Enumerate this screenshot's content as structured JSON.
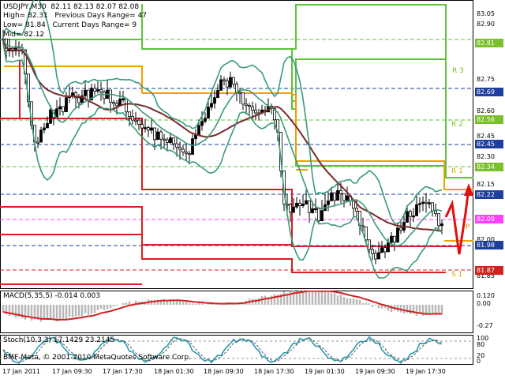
{
  "chart": {
    "symbol_line": "USDJPY,M30  82.11 82.13 82.07 82.08",
    "info_line1": "High= 82.31   Previous Days Range= 47",
    "info_line2": "Low= 81.84   Current Days Range= 9",
    "info_line3": "Mid= 82.12",
    "copyright": "BMF-Meta, © 2001-2010 MetaQuotes Software Corp."
  },
  "price_axis": [
    "83.05",
    "82.90",
    "82.75",
    "82.60",
    "82.45",
    "82.30",
    "82.15",
    "82.00",
    "81.85"
  ],
  "price_tags": [
    {
      "value": "82.81",
      "color": "#7ac02a"
    },
    {
      "value": "82.69",
      "color": "#1f3fa0"
    },
    {
      "value": "82.56",
      "color": "#7ac02a"
    },
    {
      "value": "82.45",
      "color": "#1f3fa0"
    },
    {
      "value": "82.34",
      "color": "#7ac02a"
    },
    {
      "value": "82.22",
      "color": "#1f3fa0"
    },
    {
      "value": "82.09",
      "color": "#ff40ff"
    },
    {
      "value": "81.98",
      "color": "#1f3fa0"
    },
    {
      "value": "81.87",
      "color": "#d42020"
    }
  ],
  "level_labels": [
    {
      "text": "R 3",
      "kind": "green"
    },
    {
      "text": "R 2",
      "kind": "green"
    },
    {
      "text": "R 1",
      "kind": "yellow"
    },
    {
      "text": "P",
      "kind": "yellow"
    },
    {
      "text": "S 1",
      "kind": "yellow"
    }
  ],
  "time_axis": [
    "17 Jan 2011",
    "17 Jan 09:30",
    "17 Jan 17:30",
    "18 Jan 01:30",
    "18 Jan 09:30",
    "18 Jan 17:30",
    "19 Jan 01:30",
    "19 Jan 09:30",
    "19 Jan 17:30"
  ],
  "macd": {
    "label": "MACD(5,35,5) -0.014 0.003",
    "scale": [
      "0.120",
      "0.00",
      "-0.27"
    ]
  },
  "stoch": {
    "label": "Stoch(10,3,3) 17.1429 23.2145",
    "scale": [
      "100",
      "80",
      "20",
      "0"
    ]
  },
  "colors": {
    "candle": "#000000",
    "bollinger": "#3a9a7a",
    "moving_average": "#7a2a2a",
    "pivot_red": "#d42020",
    "pivot_yellow": "#f0a000",
    "pivot_green": "#5cc43a",
    "arrow": "#e01010"
  }
}
